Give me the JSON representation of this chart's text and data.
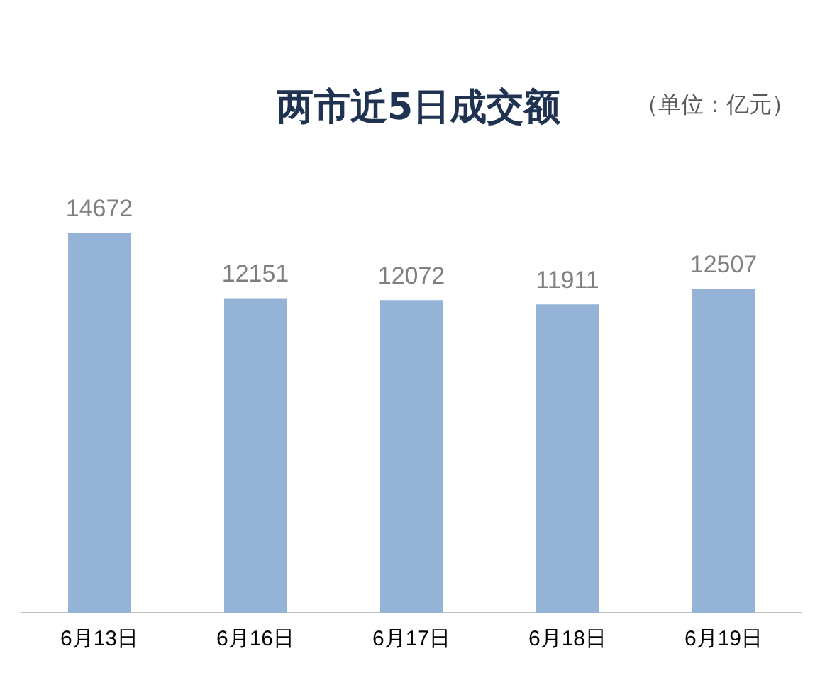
{
  "chart_data": {
    "type": "bar",
    "title": "两市近5日成交额",
    "subtitle": "（单位：亿元）",
    "categories": [
      "6月13日",
      "6月16日",
      "6月17日",
      "6月18日",
      "6月19日"
    ],
    "values": [
      14672,
      12151,
      12072,
      11911,
      12507
    ],
    "color": "#95b3d7",
    "data_labels": true
  }
}
